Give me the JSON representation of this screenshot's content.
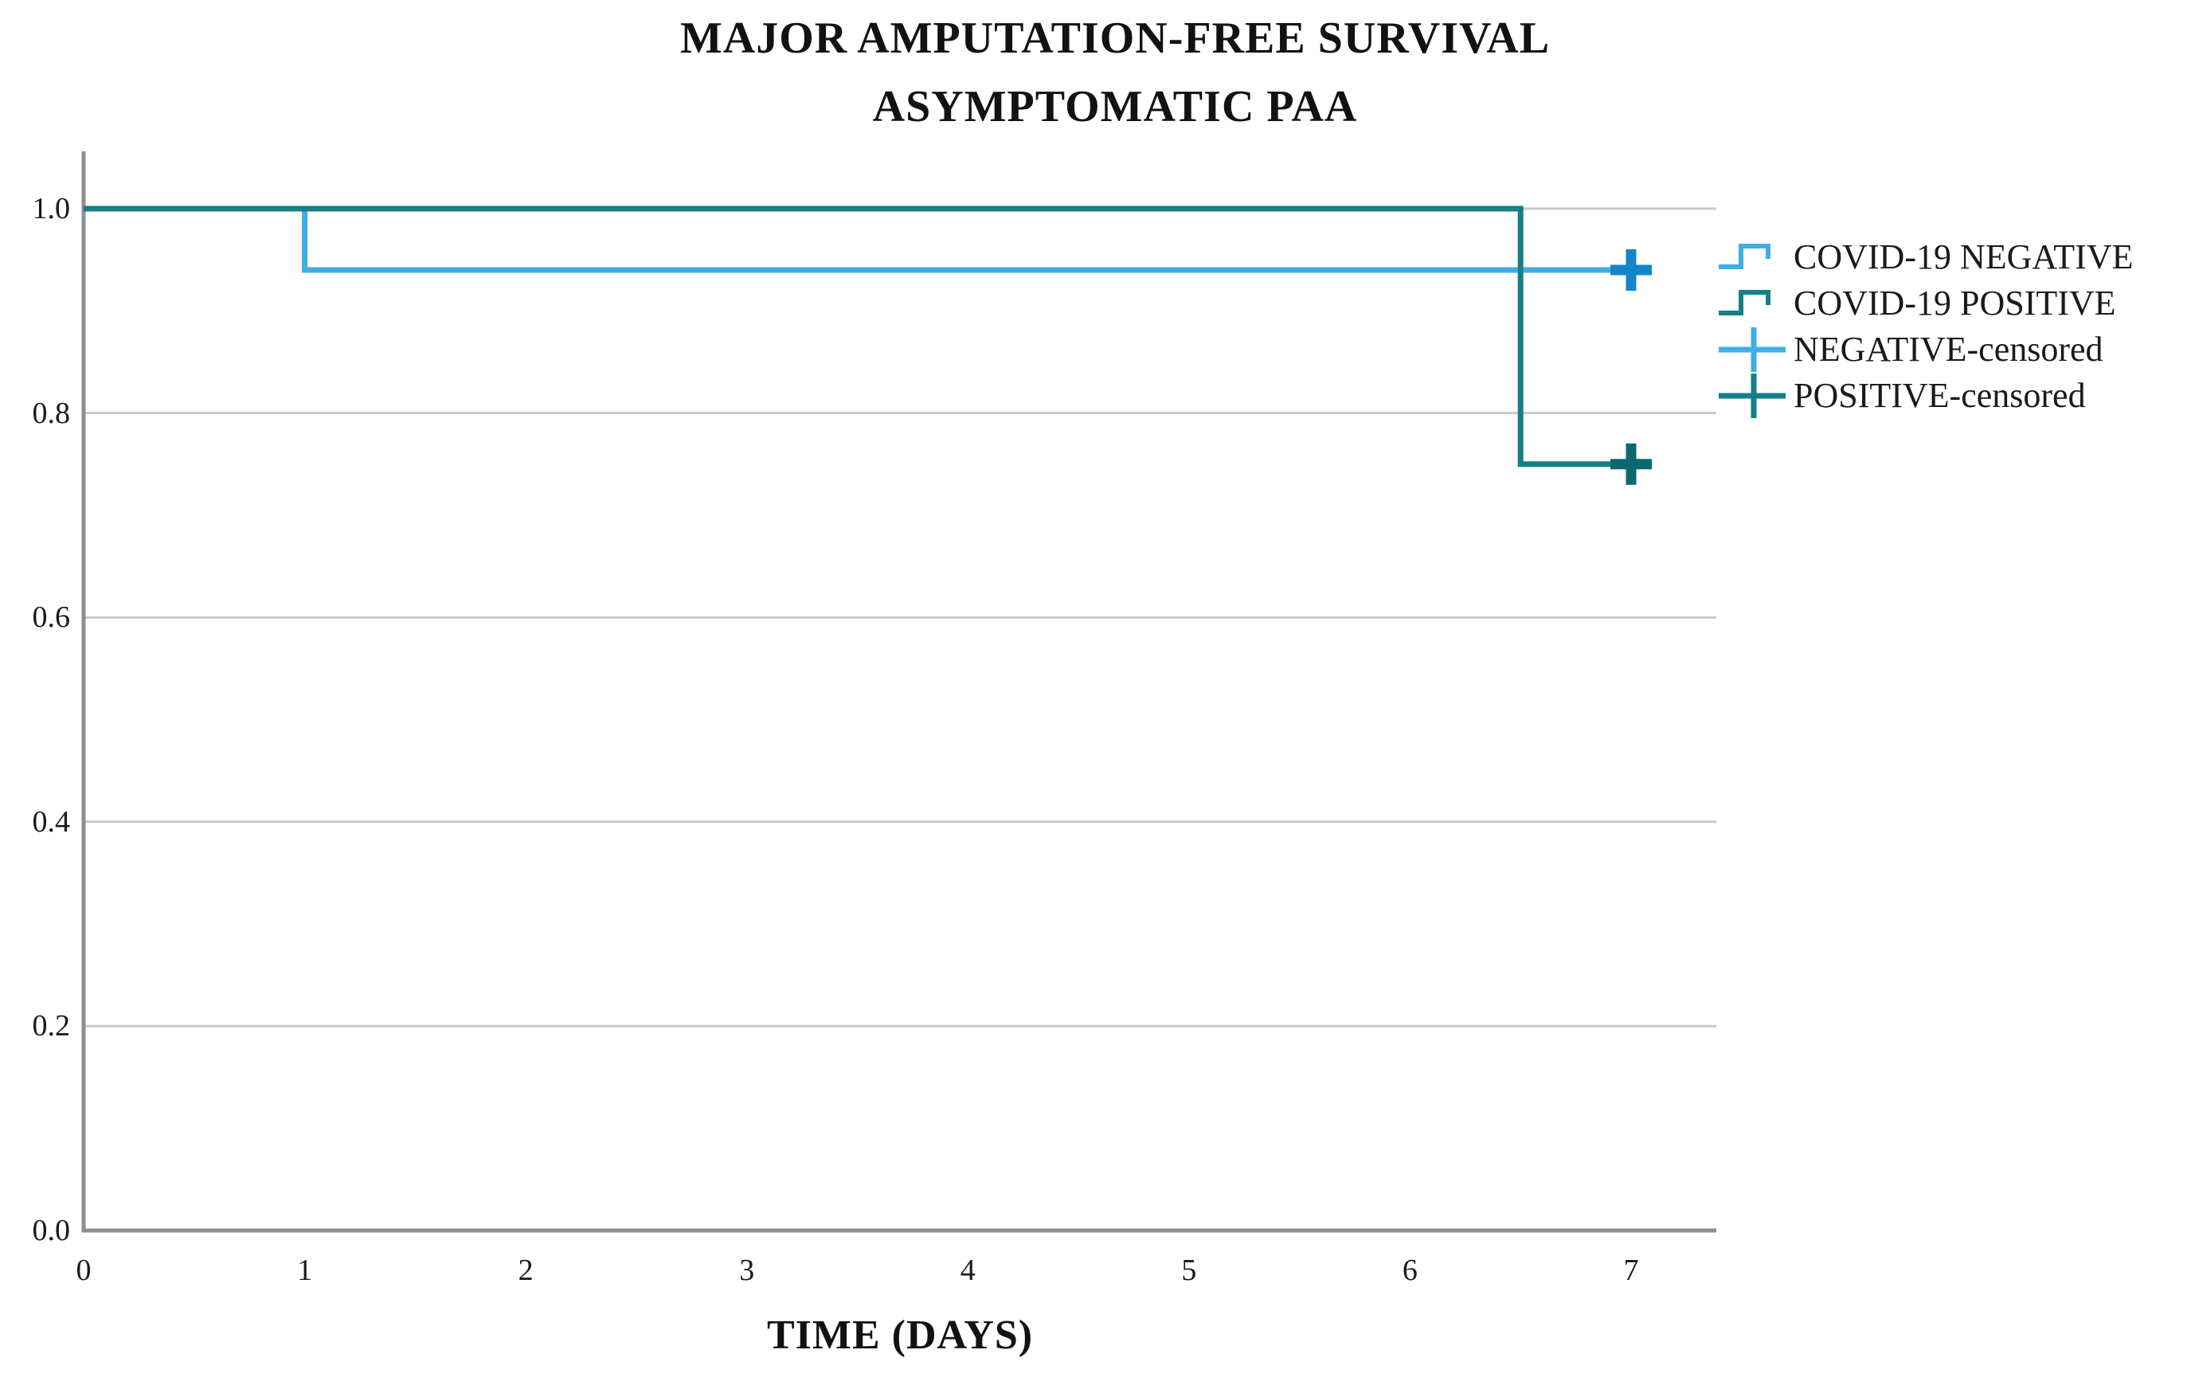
{
  "title": {
    "line1": "MAJOR AMPUTATION-FREE SURVIVAL",
    "line2": "ASYMPTOMATIC PAA"
  },
  "x_axis": {
    "label": "TIME (DAYS)",
    "ticks": [
      "0",
      "1",
      "2",
      "3",
      "4",
      "5",
      "6",
      "7"
    ],
    "tick_values": [
      0,
      1,
      2,
      3,
      4,
      5,
      6,
      7
    ]
  },
  "y_axis": {
    "ticks": [
      "1.0",
      "0.8",
      "0.6",
      "0.4",
      "0.2",
      "0.0"
    ],
    "tick_values": [
      1.0,
      0.8,
      0.6,
      0.4,
      0.2,
      0.0
    ]
  },
  "legend": {
    "items": [
      {
        "label": "COVID-19 NEGATIVE",
        "swatch": "step-line",
        "color": "#3FAEE3"
      },
      {
        "label": "COVID-19 POSITIVE",
        "swatch": "step-line",
        "color": "#147F85"
      },
      {
        "label": "NEGATIVE-censored",
        "swatch": "censor-plus",
        "color": "#3FAEE3",
        "cross_color": "#1485C8"
      },
      {
        "label": "POSITIVE-censored",
        "swatch": "censor-plus",
        "color": "#147F85",
        "cross_color": "#0C686E"
      }
    ]
  },
  "colors": {
    "negative_line": "#3FAEE3",
    "negative_censor": "#1485C8",
    "positive_line": "#147F85",
    "positive_censor": "#0C686E",
    "grid": "#C9C9C9",
    "axis": "#8E8E8E",
    "text": "#111111"
  },
  "chart_data": {
    "type": "line",
    "subtype": "kaplan-meier-step",
    "title": "MAJOR AMPUTATION-FREE SURVIVAL",
    "subtitle": "ASYMPTOMATIC PAA",
    "xlabel": "TIME (DAYS)",
    "ylabel": "",
    "xlim": [
      0,
      7.38
    ],
    "ylim": [
      0,
      1.056
    ],
    "grid": "horizontal",
    "legend_position": "right",
    "series": [
      {
        "name": "COVID-19 NEGATIVE",
        "color": "#3FAEE3",
        "censor_color": "#1485C8",
        "points": [
          {
            "t": 0,
            "s": 1.0
          },
          {
            "t": 1,
            "s": 1.0
          },
          {
            "t": 1,
            "s": 0.94
          },
          {
            "t": 7,
            "s": 0.94
          }
        ],
        "censored": [
          {
            "t": 7,
            "s": 0.94
          }
        ]
      },
      {
        "name": "COVID-19 POSITIVE",
        "color": "#147F85",
        "censor_color": "#0C686E",
        "points": [
          {
            "t": 0,
            "s": 1.0
          },
          {
            "t": 6.5,
            "s": 1.0
          },
          {
            "t": 6.5,
            "s": 0.75
          },
          {
            "t": 7,
            "s": 0.75
          }
        ],
        "censored": [
          {
            "t": 7,
            "s": 0.75
          }
        ]
      }
    ]
  }
}
